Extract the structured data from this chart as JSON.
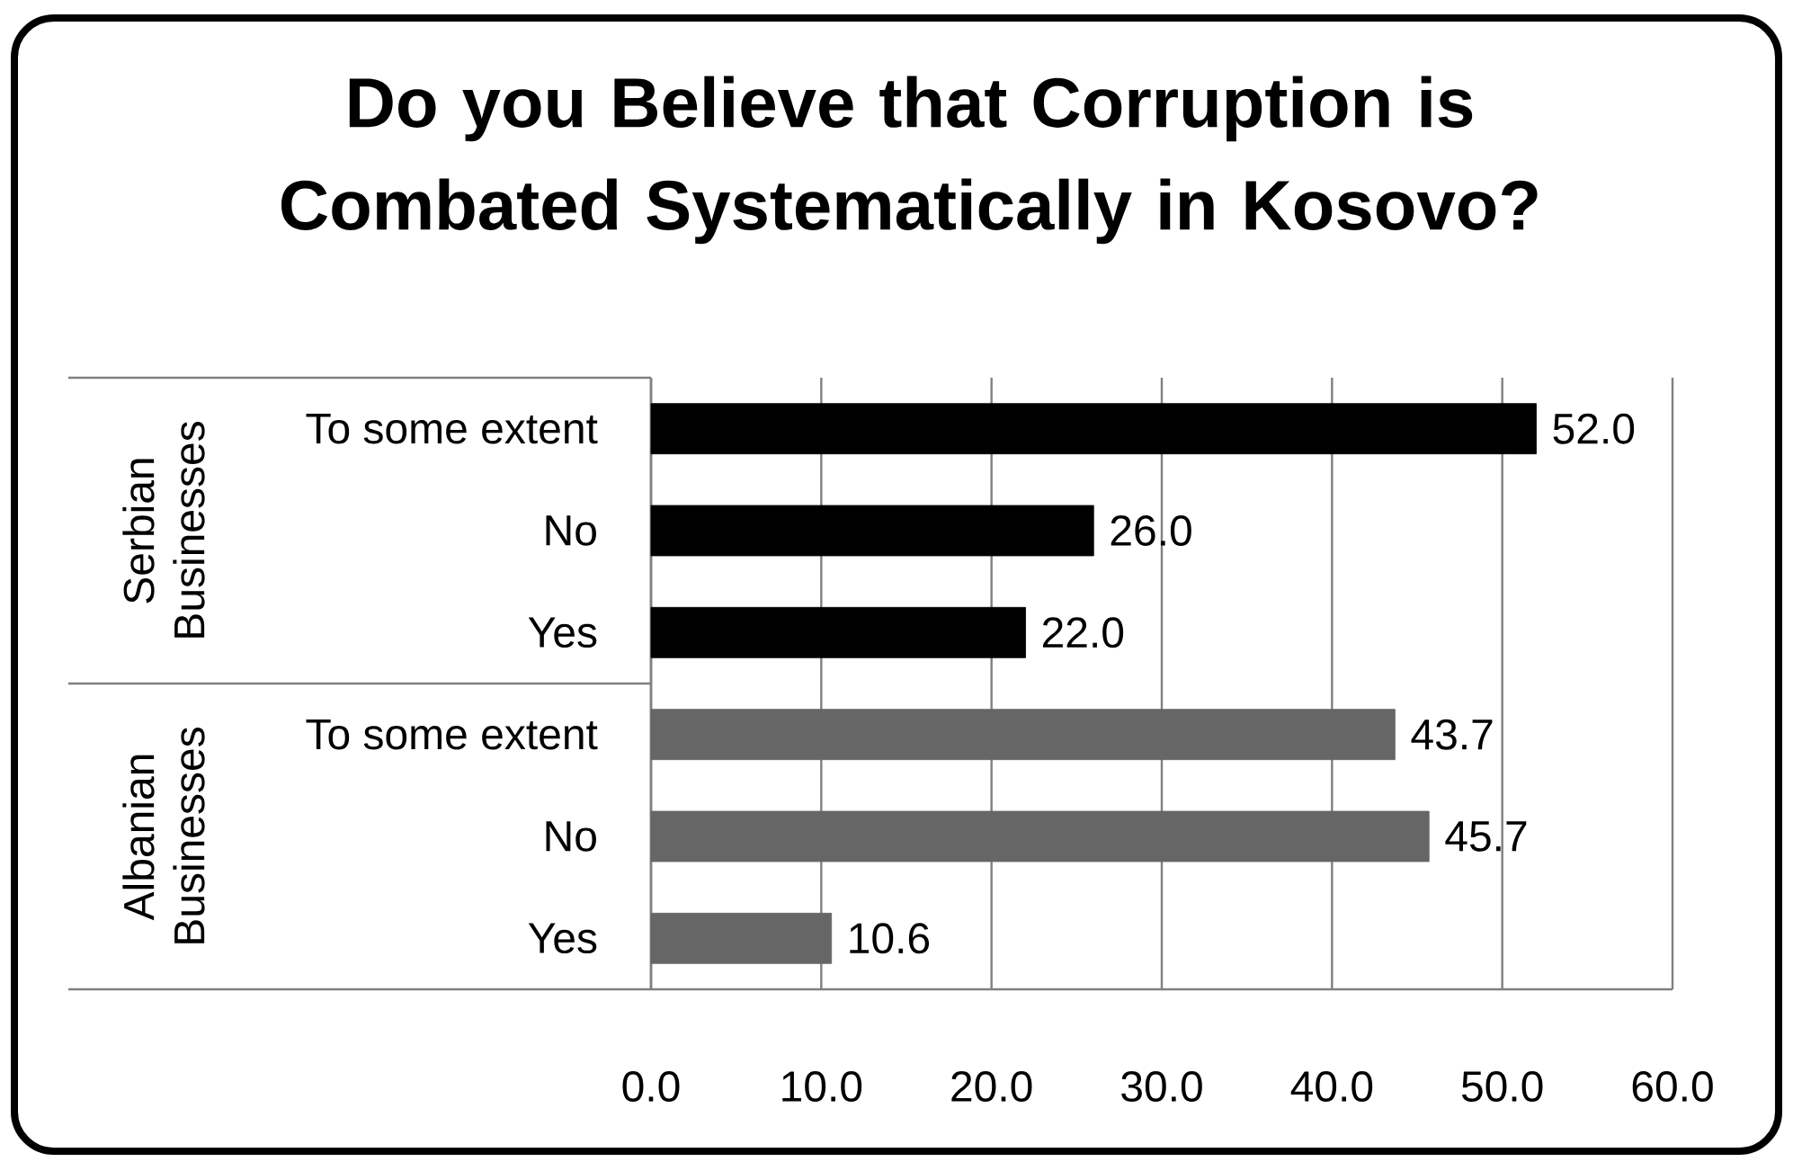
{
  "chart_data": {
    "type": "bar",
    "orientation": "horizontal",
    "title": "Do you Believe that Corruption is Combated Systematically in Kosovo?",
    "categories": [
      "To some extent",
      "No",
      "Yes",
      "To some extent",
      "No",
      "Yes"
    ],
    "values": [
      52.0,
      26.0,
      22.0,
      43.7,
      45.7,
      10.6
    ],
    "colors": [
      "#000000",
      "#000000",
      "#000000",
      "#666666",
      "#666666",
      "#666666"
    ],
    "value_labels": [
      "52.0",
      "26.0",
      "22.0",
      "43.7",
      "45.7",
      "10.6"
    ],
    "annotations": [
      "Serbian Businesses",
      "Albanian Businesses"
    ],
    "xlim": [
      0,
      60
    ],
    "xticks": [
      {
        "value": 0,
        "label": "0.0"
      },
      {
        "value": 10,
        "label": "10.0"
      },
      {
        "value": 20,
        "label": "20.0"
      },
      {
        "value": 30,
        "label": "30.0"
      },
      {
        "value": 40,
        "label": "40.0"
      },
      {
        "value": 50,
        "label": "50.0"
      },
      {
        "value": 60,
        "label": "60.0"
      }
    ],
    "grid": "x"
  }
}
